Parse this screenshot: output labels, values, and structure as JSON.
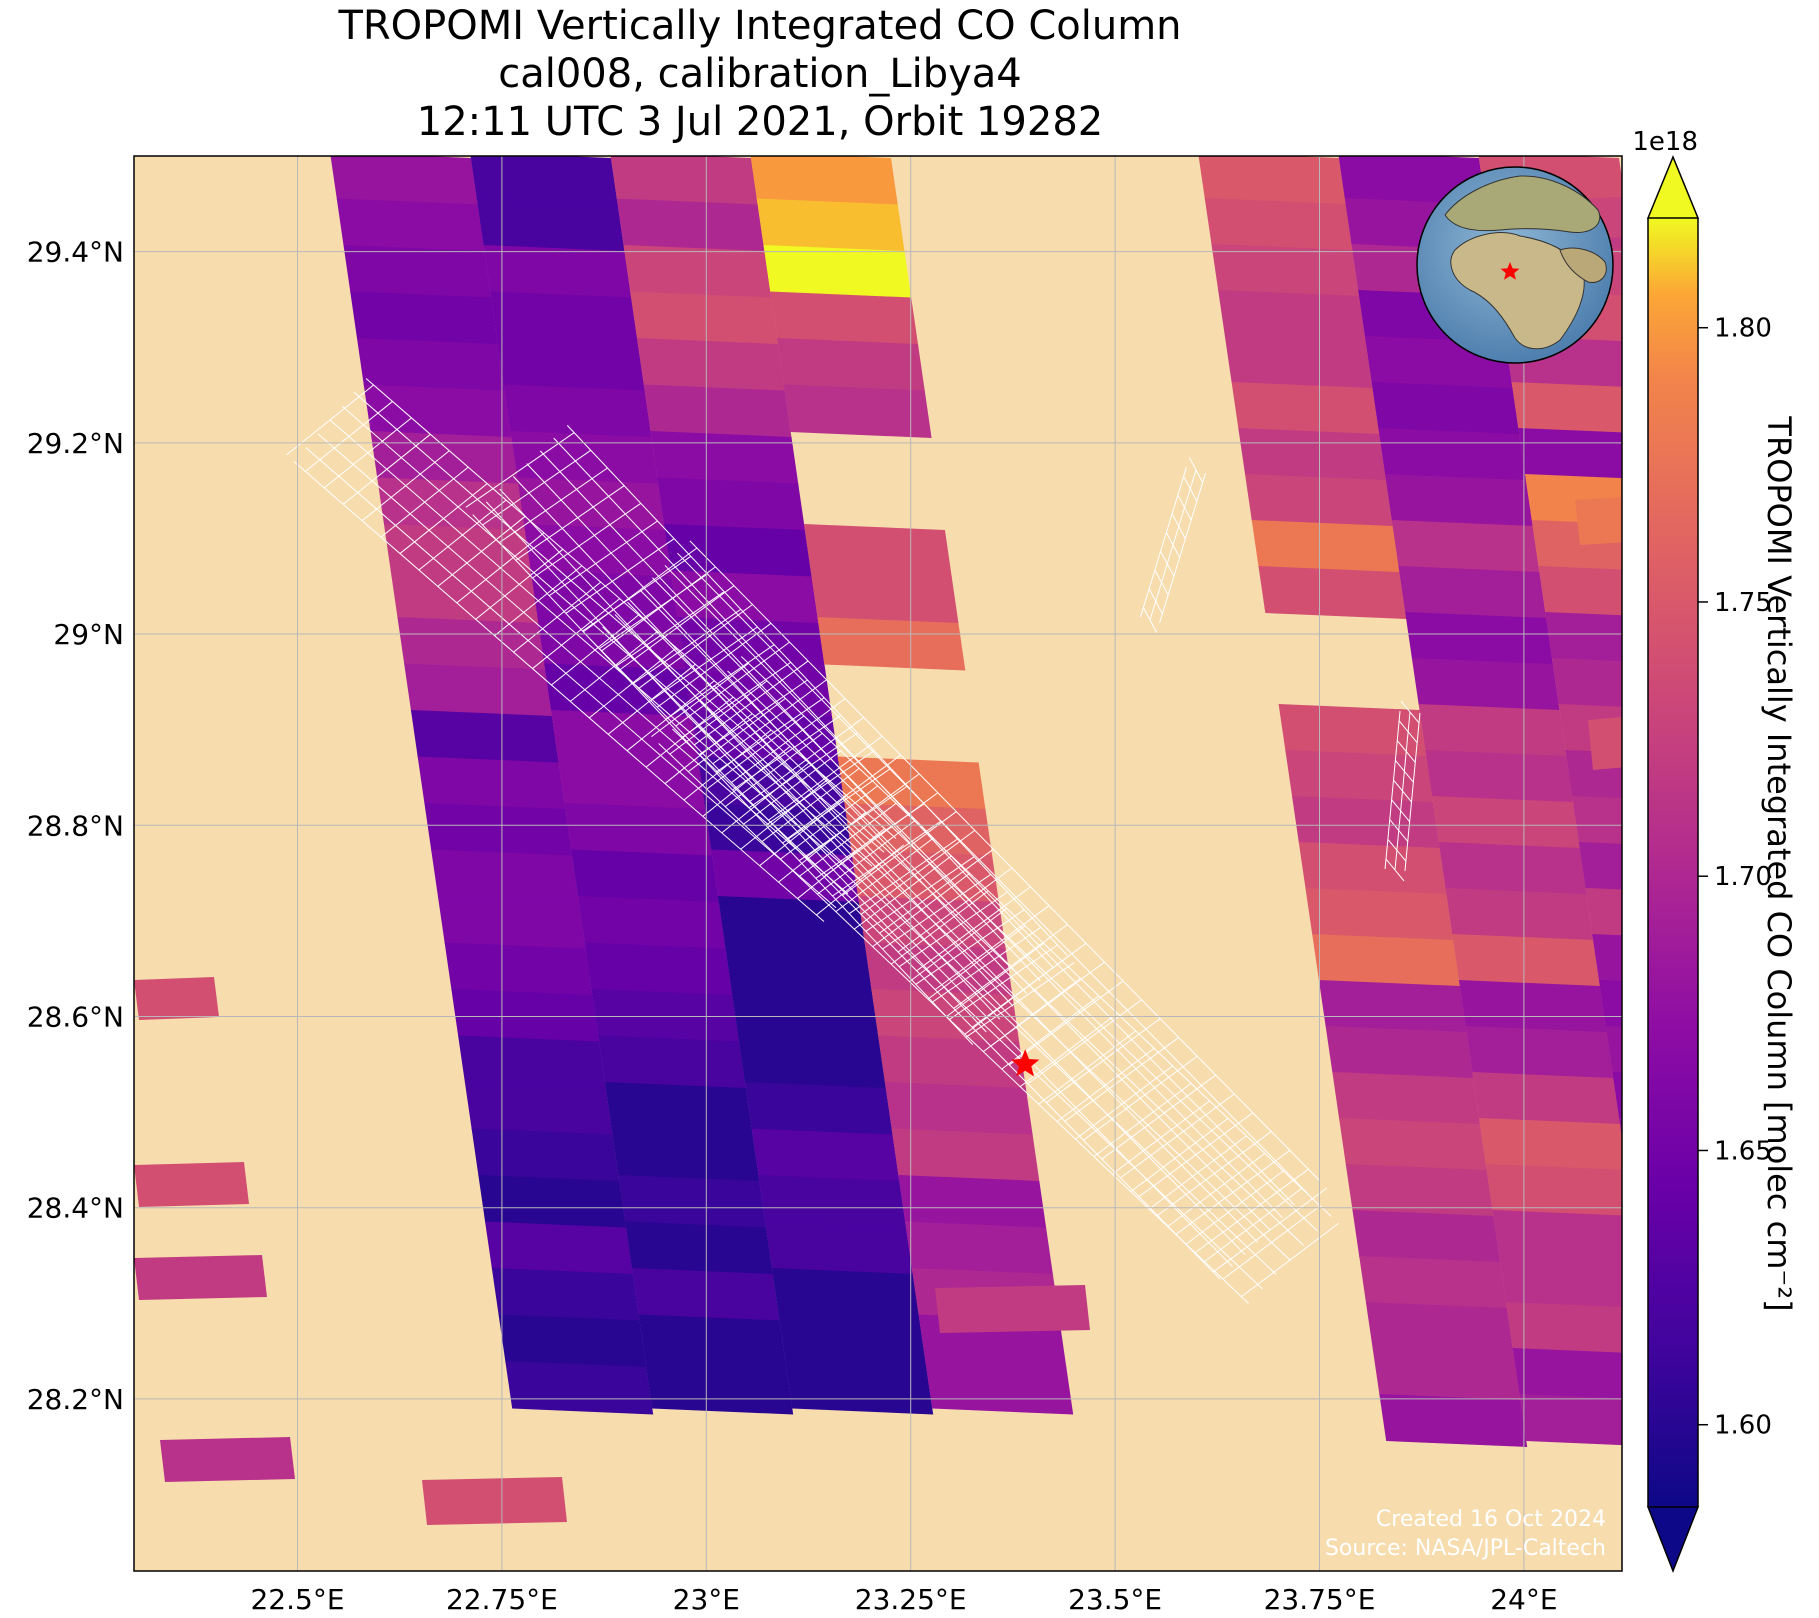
{
  "title": {
    "line1": "TROPOMI Vertically Integrated CO Column",
    "line2": "cal008, calibration_Libya4",
    "line3": "12:11 UTC 3 Jul 2021, Orbit 19282"
  },
  "map": {
    "lon_range": [
      22.3,
      24.12
    ],
    "lat_range": [
      28.02,
      29.5
    ],
    "x_ticks": [
      {
        "value": 22.5,
        "label": "22.5°E"
      },
      {
        "value": 22.75,
        "label": "22.75°E"
      },
      {
        "value": 23.0,
        "label": "23°E"
      },
      {
        "value": 23.25,
        "label": "23.25°E"
      },
      {
        "value": 23.5,
        "label": "23.5°E"
      },
      {
        "value": 23.75,
        "label": "23.75°E"
      },
      {
        "value": 24.0,
        "label": "24°E"
      }
    ],
    "y_ticks": [
      {
        "value": 29.4,
        "label": "29.4°N"
      },
      {
        "value": 29.2,
        "label": "29.2°N"
      },
      {
        "value": 29.0,
        "label": "29°N"
      },
      {
        "value": 28.8,
        "label": "28.8°N"
      },
      {
        "value": 28.6,
        "label": "28.6°N"
      },
      {
        "value": 28.4,
        "label": "28.4°N"
      },
      {
        "value": 28.2,
        "label": "28.2°N"
      }
    ],
    "background_color": "#f7dcae",
    "grid": true,
    "target": {
      "lon": 23.39,
      "lat": 28.55,
      "marker": "star",
      "color": "#ff0000"
    },
    "inset_globe": {
      "placement": "top-right",
      "marker_color": "#ff0000"
    }
  },
  "colorbar": {
    "label": "TROPOMI Vertically Integrated CO Column [molec cm⁻²]",
    "scale_label": "1e18",
    "min": 1.585,
    "max": 1.82,
    "ticks": [
      {
        "value": 1.6,
        "label": "1.60"
      },
      {
        "value": 1.65,
        "label": "1.65"
      },
      {
        "value": 1.7,
        "label": "1.70"
      },
      {
        "value": 1.75,
        "label": "1.75"
      },
      {
        "value": 1.8,
        "label": "1.80"
      }
    ],
    "colormap": "plasma",
    "extend": "both"
  },
  "credits": {
    "created": "Created 16 Oct 2024",
    "source": "Source: NASA/JPL-Caltech"
  },
  "swaths": [
    {
      "name": "swath-west",
      "columns": [
        {
          "cells": [
            1.68,
            1.67,
            1.66,
            1.65,
            1.66,
            1.67,
            1.69,
            1.71,
            1.72,
            1.72,
            1.7,
            1.69,
            1.63,
            1.66,
            1.65,
            1.66,
            1.66,
            1.65,
            1.64,
            1.62,
            1.62,
            1.61,
            1.6,
            1.63,
            1.61,
            1.6,
            1.61
          ]
        },
        {
          "cells": [
            1.62,
            1.62,
            1.66,
            1.65,
            1.65,
            1.66,
            1.67,
            1.68,
            1.67,
            1.66,
            1.66,
            1.64,
            1.67,
            1.67,
            1.66,
            1.64,
            1.65,
            1.64,
            1.63,
            1.62,
            1.6,
            1.6,
            1.61,
            1.6,
            1.62,
            1.6,
            1.6
          ]
        },
        {
          "cells": [
            1.72,
            1.7,
            1.73,
            1.74,
            1.72,
            1.7,
            1.67,
            1.66,
            1.64,
            1.67,
            1.65,
            1.65,
            1.64,
            1.62,
            1.61,
            1.65,
            1.6,
            1.6,
            1.6,
            1.6,
            1.61,
            1.63,
            1.62,
            1.62,
            1.6,
            1.6,
            1.6
          ]
        },
        {
          "cells": [
            1.8,
            1.81,
            1.82,
            1.74,
            1.72,
            1.71,
            null,
            null,
            1.74,
            1.74,
            1.77,
            null,
            null,
            1.78,
            1.76,
            1.75,
            1.73,
            1.72,
            1.73,
            1.72,
            1.71,
            1.72,
            1.68,
            1.69,
            1.7,
            1.68,
            1.68
          ]
        }
      ]
    },
    {
      "name": "swath-east",
      "columns": [
        {
          "cells": [
            1.75,
            1.74,
            1.73,
            1.72,
            1.72,
            1.74,
            1.72,
            1.73,
            1.78,
            1.74,
            null,
            null,
            1.74,
            1.73,
            1.72,
            1.74,
            1.75,
            1.77,
            1.69,
            1.7,
            1.72,
            1.73,
            1.72,
            1.7,
            1.71,
            1.7,
            1.7,
            1.68
          ]
        },
        {
          "cells": [
            1.67,
            1.68,
            1.7,
            1.66,
            1.67,
            1.66,
            1.67,
            1.68,
            1.71,
            1.69,
            1.67,
            1.68,
            1.72,
            1.71,
            1.73,
            1.71,
            1.72,
            1.75,
            1.68,
            1.69,
            1.72,
            1.75,
            1.74,
            1.71,
            1.71,
            1.72,
            1.68,
            1.69
          ]
        },
        {
          "cells": [
            1.74,
            1.72,
            1.73,
            1.74,
            1.71,
            1.75,
            1.67,
            1.79,
            1.76,
            1.74,
            1.69,
            1.7,
            1.72,
            1.7,
            1.71,
            1.69,
            1.72,
            1.68,
            1.67,
            1.68,
            1.67,
            1.68,
            1.7,
            1.67,
            1.65,
            1.66,
            1.68,
            1.7
          ]
        }
      ]
    }
  ],
  "scattered_pixels": [
    {
      "value": 1.74
    },
    {
      "value": 1.74
    },
    {
      "value": 1.72
    },
    {
      "value": 1.71
    },
    {
      "value": 1.74
    },
    {
      "value": 1.72
    },
    {
      "value": 1.73
    },
    {
      "value": 1.78
    },
    {
      "value": 1.74
    }
  ]
}
